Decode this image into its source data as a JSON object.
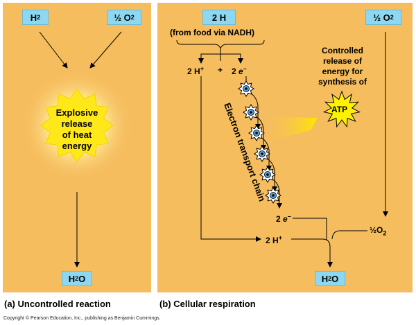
{
  "panel_a": {
    "input_h2": {
      "base": "H",
      "sub": "2"
    },
    "input_o2": {
      "frac": "½",
      "base": "O",
      "sub": "2"
    },
    "burst_lines": [
      "Explosive",
      "release",
      "of heat",
      "energy"
    ],
    "output_h2o": {
      "base": "H",
      "sub": "2",
      "tail": "O"
    },
    "caption": "(a) Uncontrolled reaction"
  },
  "panel_b": {
    "input_2h": "2 H",
    "food_note": "(from food via NADH)",
    "h_plus": {
      "text": "2 H",
      "sup": "+"
    },
    "plus": "+",
    "electrons": {
      "text": "2 ",
      "e": "e",
      "sup": "–"
    },
    "input_o2": {
      "frac": "½",
      "base": "O",
      "sub": "2"
    },
    "controlled_lines": [
      "Controlled",
      "release of",
      "energy for",
      "synthesis of"
    ],
    "atp": "ATP",
    "chain_label": "Electron transport chain",
    "electrons_out": {
      "text": "2 ",
      "e": "e",
      "sup": "–"
    },
    "o2_out": {
      "frac": "½",
      "base": "O",
      "sub": "2"
    },
    "h_plus_out": {
      "text": "2 H",
      "sup": "+"
    },
    "output_h2o": {
      "base": "H",
      "sub": "2",
      "tail": "O"
    },
    "caption": "(b) Cellular respiration"
  },
  "copyright": "Copyright © Pearson Education, Inc., publishing as Benjamin Cummings.",
  "colors": {
    "panel": "#f6bd5e",
    "box": "#8dd7f0",
    "burst": "#ffe81a",
    "atp": "#fff200"
  }
}
